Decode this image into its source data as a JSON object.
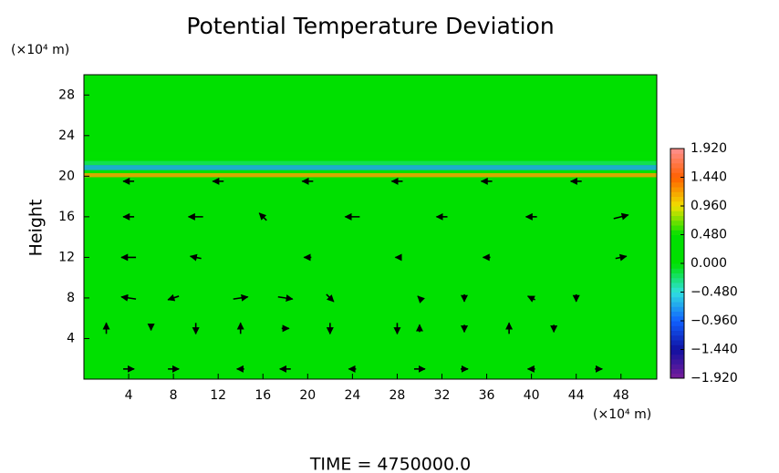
{
  "chart_data": {
    "type": "vector",
    "title": "Potential Temperature Deviation",
    "ylabel": "Height",
    "y_units": "(×10⁴ m)",
    "x_units": "(×10⁴ m)",
    "footer": "TIME = 4750000.0",
    "xlim": [
      0,
      51.2
    ],
    "ylim": [
      0,
      30
    ],
    "xticks": [
      4,
      8,
      12,
      16,
      20,
      24,
      28,
      32,
      36,
      40,
      44,
      48
    ],
    "yticks": [
      4,
      8,
      12,
      16,
      20,
      24,
      28
    ],
    "background_value": 0,
    "colorbar": {
      "lim": [
        -1.92,
        1.92
      ],
      "colors": [
        "#7a1e9a",
        "#1010a0",
        "#1060ff",
        "#30e0e0",
        "#00e000",
        "#00e000",
        "#f0e000",
        "#ff6000",
        "#ff9090"
      ],
      "ticks": [
        {
          "value": 1.92,
          "label": "1.920"
        },
        {
          "value": 1.44,
          "label": "1.440"
        },
        {
          "value": 0.96,
          "label": "0.960"
        },
        {
          "value": 0.48,
          "label": "0.480"
        },
        {
          "value": 0,
          "label": "0.000"
        },
        {
          "value": -0.48,
          "label": "−0.480"
        },
        {
          "value": -0.96,
          "label": "−0.960"
        },
        {
          "value": -1.44,
          "label": "−1.440"
        },
        {
          "value": -1.92,
          "label": "−1.920"
        }
      ]
    },
    "field_bands": [
      {
        "y0": 19.9,
        "y1": 20.3,
        "value": 1.2
      },
      {
        "y0": 20.3,
        "y1": 20.6,
        "value": 0.4
      },
      {
        "y0": 20.6,
        "y1": 21.1,
        "value": -0.7
      },
      {
        "y0": 21.1,
        "y1": 21.5,
        "value": -0.2
      },
      {
        "y0": 21.8,
        "y1": 22.4,
        "value": 0.3
      }
    ],
    "vectors": {
      "x": [
        4,
        12,
        20,
        28,
        36,
        44,
        4,
        10,
        16,
        24,
        32,
        40,
        48,
        4,
        10,
        20,
        28,
        36,
        48,
        4,
        8,
        14,
        18,
        22,
        30,
        34,
        40,
        44,
        2,
        6,
        10,
        14,
        18,
        22,
        28,
        30,
        34,
        38,
        42,
        4,
        8,
        14,
        18,
        24,
        30,
        34,
        40,
        46
      ],
      "y": [
        19.5,
        19.5,
        19.5,
        19.5,
        19.5,
        19.5,
        16,
        16,
        16,
        16,
        16,
        16,
        16,
        12,
        12,
        12,
        12,
        12,
        12,
        8,
        8,
        8,
        8,
        8,
        8,
        8,
        8,
        8,
        5,
        5,
        5,
        5,
        5,
        5,
        5,
        5,
        5,
        5,
        5,
        1,
        1,
        1,
        1,
        1,
        1,
        1,
        1,
        1
      ],
      "u": [
        -1.5,
        -1.5,
        -1.5,
        -1.5,
        -1.5,
        -1.5,
        -1.5,
        -2,
        -1,
        -2,
        -1.5,
        -1.5,
        2,
        -2,
        -1.5,
        -1,
        -0.5,
        -1,
        1.5,
        -2,
        -1.5,
        2,
        2,
        1,
        -0.5,
        0,
        -1,
        0,
        0,
        0,
        0,
        0,
        1,
        0,
        0,
        0,
        0,
        0,
        0,
        1.5,
        1.5,
        -1,
        -1.5,
        -1,
        1.5,
        1,
        -1,
        1
      ],
      "w": [
        0,
        0,
        0,
        0,
        0,
        0,
        0,
        0,
        1,
        0,
        0,
        0,
        0.5,
        0,
        0.3,
        0,
        0,
        0,
        0.3,
        0.3,
        -0.5,
        0.3,
        -0.3,
        -1,
        0.5,
        -1,
        0.5,
        -1,
        1.5,
        -0.5,
        -1.5,
        1.5,
        0,
        -1.5,
        -1.5,
        1,
        -1,
        1.5,
        -1,
        0,
        0,
        0,
        0,
        0,
        0,
        0,
        0,
        0
      ]
    }
  }
}
